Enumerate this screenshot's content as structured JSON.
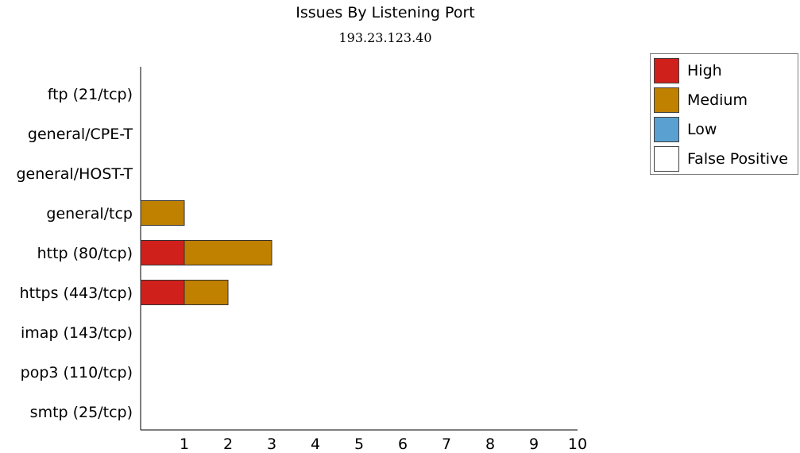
{
  "chart_data": {
    "type": "bar",
    "orientation": "horizontal",
    "stacked": true,
    "title": "Issues By Listening Port",
    "subtitle": "193.23.123.40",
    "categories": [
      "ftp (21/tcp)",
      "general/CPE-T",
      "general/HOST-T",
      "general/tcp",
      "http (80/tcp)",
      "https (443/tcp)",
      "imap (143/tcp)",
      "pop3 (110/tcp)",
      "smtp (25/tcp)"
    ],
    "series": [
      {
        "name": "High",
        "color": "#d0201c",
        "values": [
          0,
          0,
          0,
          0,
          1,
          1,
          0,
          0,
          0
        ]
      },
      {
        "name": "Medium",
        "color": "#c08000",
        "values": [
          0,
          0,
          0,
          1,
          2,
          1,
          0,
          0,
          0
        ]
      },
      {
        "name": "Low",
        "color": "#5aa0d0",
        "values": [
          0,
          0,
          0,
          0,
          0,
          0,
          0,
          0,
          0
        ]
      },
      {
        "name": "False Positive",
        "color": "#ffffff",
        "values": [
          0,
          0,
          0,
          0,
          0,
          0,
          0,
          0,
          0
        ]
      }
    ],
    "xlim": [
      0,
      10
    ],
    "xticks": [
      1,
      2,
      3,
      4,
      5,
      6,
      7,
      8,
      9,
      10
    ],
    "grid": false,
    "legend_position": "top-right"
  }
}
